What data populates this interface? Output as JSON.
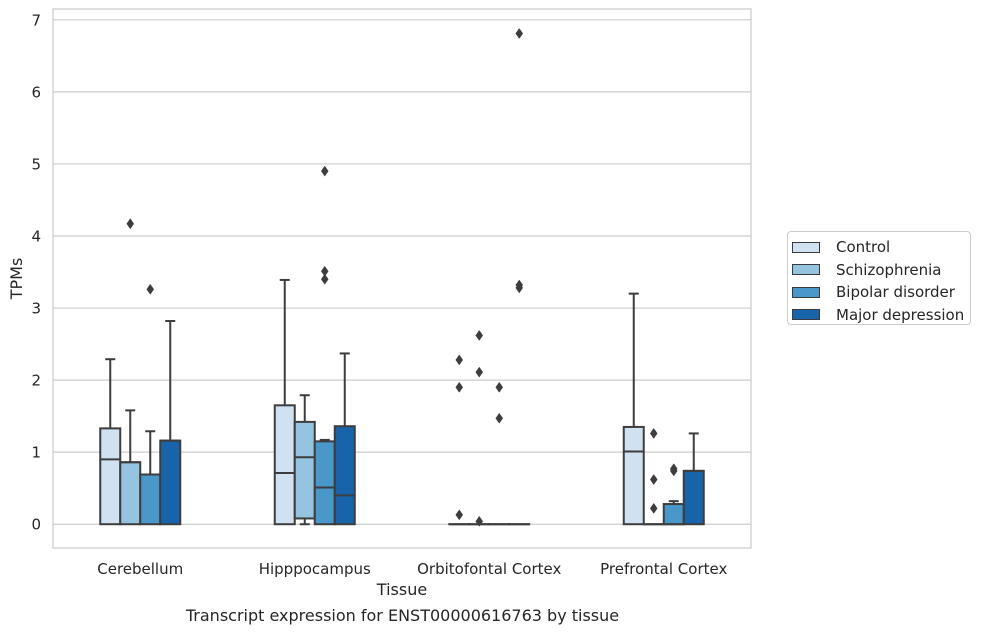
{
  "caption": "Transcript expression for ENST00000616763 by tissue",
  "chart_data": {
    "type": "box",
    "xlabel": "Tissue",
    "ylabel": "TPMs",
    "ylim": [
      -0.33,
      7.15
    ],
    "yticks": [
      0,
      1,
      2,
      3,
      4,
      5,
      6,
      7
    ],
    "grid": "horizontal",
    "legend_position": "right",
    "categories": [
      "Cerebellum",
      "Hipppocampus",
      "Orbitofontal Cortex",
      "Prefrontal Cortex"
    ],
    "series": [
      {
        "name": "Control",
        "color": "#d0e1f2",
        "boxes": [
          {
            "q1": 0,
            "median": 0.9,
            "q3": 1.33,
            "whisker_low": 0,
            "whisker_high": 2.29,
            "outliers": []
          },
          {
            "q1": 0,
            "median": 0.71,
            "q3": 1.65,
            "whisker_low": 0,
            "whisker_high": 3.39,
            "outliers": []
          },
          {
            "q1": 0,
            "median": 0,
            "q3": 0,
            "whisker_low": 0,
            "whisker_high": 0,
            "outliers": [
              0.13,
              1.9,
              2.28
            ]
          },
          {
            "q1": 0,
            "median": 1.01,
            "q3": 1.35,
            "whisker_low": 0,
            "whisker_high": 3.2,
            "outliers": []
          }
        ]
      },
      {
        "name": "Schizophrenia",
        "color": "#94c4df",
        "boxes": [
          {
            "q1": 0,
            "median": 0.86,
            "q3": 0.86,
            "whisker_low": 0,
            "whisker_high": 1.58,
            "outliers": [
              4.17
            ]
          },
          {
            "q1": 0.08,
            "median": 0.93,
            "q3": 1.42,
            "whisker_low": 0,
            "whisker_high": 1.79,
            "outliers": []
          },
          {
            "q1": 0,
            "median": 0,
            "q3": 0,
            "whisker_low": 0,
            "whisker_high": 0,
            "outliers": [
              0.04,
              2.11,
              2.62
            ]
          },
          {
            "q1": 0,
            "median": 0,
            "q3": 0,
            "whisker_low": 0,
            "whisker_high": 0,
            "outliers": [
              0.22,
              0.62,
              1.26
            ]
          }
        ]
      },
      {
        "name": "Bipolar disorder",
        "color": "#4a98c9",
        "boxes": [
          {
            "q1": 0,
            "median": 0.69,
            "q3": 0.69,
            "whisker_low": 0,
            "whisker_high": 1.29,
            "outliers": [
              3.26
            ]
          },
          {
            "q1": 0,
            "median": 0.51,
            "q3": 1.15,
            "whisker_low": 0,
            "whisker_high": 1.17,
            "outliers": [
              3.4,
              3.51,
              4.9
            ]
          },
          {
            "q1": 0,
            "median": 0,
            "q3": 0,
            "whisker_low": 0,
            "whisker_high": 0,
            "outliers": [
              1.47,
              1.9
            ]
          },
          {
            "q1": 0,
            "median": 0,
            "q3": 0.28,
            "whisker_low": 0,
            "whisker_high": 0.32,
            "outliers": [
              0.74,
              0.77
            ]
          }
        ]
      },
      {
        "name": "Major depression",
        "color": "#1764ab",
        "boxes": [
          {
            "q1": 0,
            "median": 1.16,
            "q3": 1.16,
            "whisker_low": 0,
            "whisker_high": 2.82,
            "outliers": []
          },
          {
            "q1": 0,
            "median": 0.4,
            "q3": 1.36,
            "whisker_low": 0,
            "whisker_high": 2.37,
            "outliers": []
          },
          {
            "q1": 0,
            "median": 0,
            "q3": 0,
            "whisker_low": 0,
            "whisker_high": 0,
            "outliers": [
              3.28,
              3.32,
              6.81
            ]
          },
          {
            "q1": 0,
            "median": 0.74,
            "q3": 0.74,
            "whisker_low": 0,
            "whisker_high": 1.26,
            "outliers": []
          }
        ]
      }
    ]
  }
}
